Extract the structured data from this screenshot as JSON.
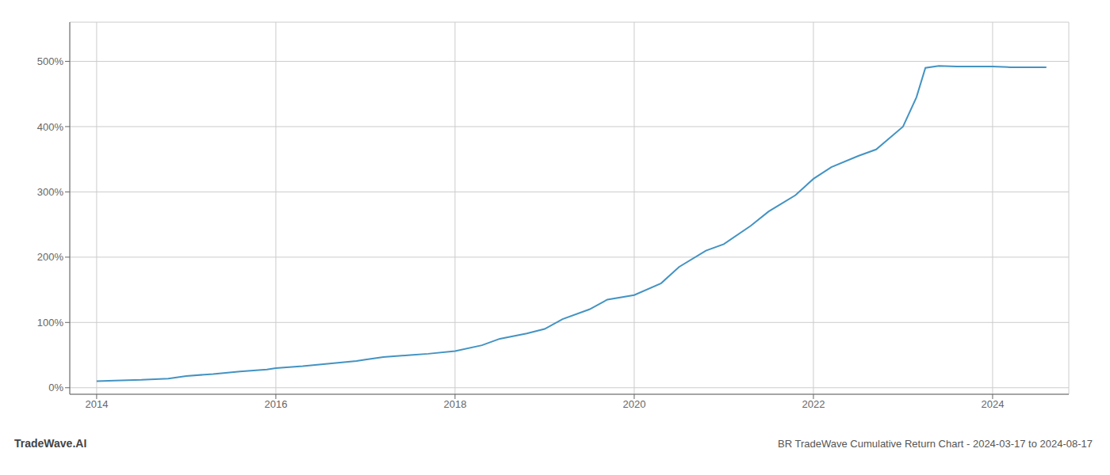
{
  "chart_data": {
    "type": "line",
    "title": "BR TradeWave Cumulative Return Chart - 2024-03-17 to 2024-08-17",
    "annotations": [
      "TradeWave.AI"
    ],
    "color": "#4393c3",
    "grid": true,
    "xlim": [
      2013.7,
      2024.85
    ],
    "ylim": [
      -10,
      560
    ],
    "xticks": [
      2014,
      2016,
      2018,
      2020,
      2022,
      2024
    ],
    "yticks": [
      {
        "value": 0,
        "label": "0%"
      },
      {
        "value": 100,
        "label": "100%"
      },
      {
        "value": 200,
        "label": "200%"
      },
      {
        "value": 300,
        "label": "300%"
      },
      {
        "value": 400,
        "label": "400%"
      },
      {
        "value": 500,
        "label": "500%"
      }
    ],
    "x": [
      2014.0,
      2014.2,
      2014.5,
      2014.8,
      2015.0,
      2015.3,
      2015.6,
      2015.9,
      2016.0,
      2016.3,
      2016.6,
      2016.9,
      2017.0,
      2017.2,
      2017.5,
      2017.7,
      2018.0,
      2018.3,
      2018.5,
      2018.8,
      2019.0,
      2019.2,
      2019.5,
      2019.7,
      2020.0,
      2020.3,
      2020.5,
      2020.8,
      2021.0,
      2021.3,
      2021.5,
      2021.8,
      2022.0,
      2022.2,
      2022.5,
      2022.7,
      2023.0,
      2023.15,
      2023.25,
      2023.4,
      2023.6,
      2024.0,
      2024.2,
      2024.6
    ],
    "values": [
      10,
      11,
      12,
      14,
      18,
      21,
      25,
      28,
      30,
      33,
      37,
      41,
      43,
      47,
      50,
      52,
      56,
      65,
      75,
      83,
      90,
      105,
      120,
      135,
      142,
      160,
      185,
      210,
      220,
      248,
      270,
      295,
      320,
      338,
      355,
      365,
      400,
      445,
      490,
      493,
      492,
      492,
      491,
      491
    ]
  }
}
